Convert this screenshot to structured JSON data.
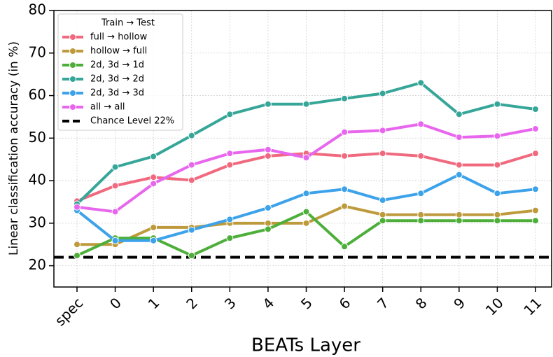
{
  "chart_data": {
    "type": "line",
    "x_label": "BEATs Layer",
    "y_label": "Linear classification accuracy (in %)",
    "legend_title": "Train → Test",
    "categories": [
      "spec",
      "0",
      "1",
      "2",
      "3",
      "4",
      "5",
      "6",
      "7",
      "8",
      "9",
      "10",
      "11"
    ],
    "series": [
      {
        "name": "full → hollow",
        "color": "#f0697e",
        "values": [
          35.2,
          38.8,
          40.8,
          40.1,
          43.7,
          45.8,
          46.4,
          45.8,
          46.4,
          45.8,
          43.7,
          43.7,
          46.4
        ]
      },
      {
        "name": "hollow → full",
        "color": "#bd9a3c",
        "values": [
          25,
          25,
          29,
          29,
          30,
          30,
          30,
          34,
          32,
          32,
          32,
          32,
          33
        ]
      },
      {
        "name": "2d, 3d → 1d",
        "color": "#4daf3a",
        "values": [
          22.4,
          26.5,
          26.5,
          22.4,
          26.5,
          28.6,
          32.7,
          24.5,
          30.6,
          30.6,
          30.6,
          30.6,
          30.6
        ]
      },
      {
        "name": "2d, 3d → 2d",
        "color": "#36a698",
        "values": [
          34.5,
          43.2,
          45.7,
          50.6,
          55.6,
          58.0,
          58.0,
          59.3,
          60.5,
          63.0,
          55.6,
          58.0,
          56.8
        ]
      },
      {
        "name": "2d, 3d → 3d",
        "color": "#3ca2ea",
        "values": [
          33.0,
          25.9,
          25.9,
          28.4,
          30.9,
          33.6,
          37.0,
          38.0,
          35.4,
          37.0,
          41.4,
          37.0,
          38.0
        ]
      },
      {
        "name": "all → all",
        "color": "#e866ee",
        "values": [
          33.8,
          32.7,
          39.3,
          43.7,
          46.4,
          47.3,
          45.4,
          51.4,
          51.8,
          53.3,
          50.2,
          50.5,
          52.2
        ]
      }
    ],
    "chance": {
      "value": 22,
      "label": "Chance Level 22%",
      "color": "#000000"
    },
    "ylim": [
      15,
      80
    ],
    "yticks": [
      20,
      30,
      40,
      50,
      60,
      70,
      80
    ],
    "grid": true
  }
}
